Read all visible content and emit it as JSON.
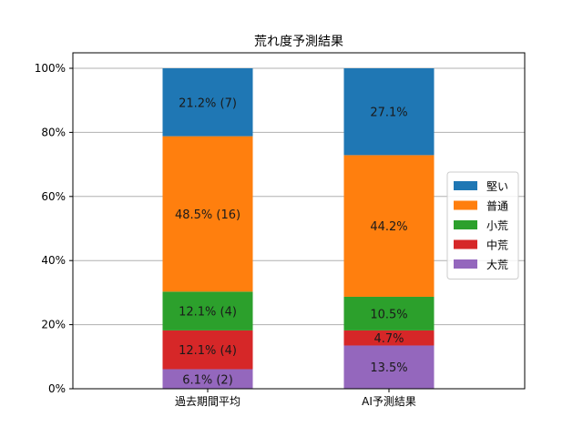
{
  "chart_data": {
    "type": "bar",
    "stacked": true,
    "title": "荒れ度予測結果",
    "xlabel": "",
    "ylabel": "",
    "ylim": [
      0,
      100
    ],
    "yticks": [
      "0%",
      "20%",
      "40%",
      "60%",
      "80%",
      "100%"
    ],
    "grid": "y",
    "legend_position": "right",
    "categories": [
      "過去期間平均",
      "AI予測結果"
    ],
    "series": [
      {
        "name": "大荒",
        "color": "#9467bd",
        "values": [
          6.1,
          13.5
        ],
        "labels": [
          "6.1% (2)",
          "13.5%"
        ]
      },
      {
        "name": "中荒",
        "color": "#d62728",
        "values": [
          12.1,
          4.7
        ],
        "labels": [
          "12.1% (4)",
          "4.7%"
        ]
      },
      {
        "name": "小荒",
        "color": "#2ca02c",
        "values": [
          12.1,
          10.5
        ],
        "labels": [
          "12.1% (4)",
          "10.5%"
        ]
      },
      {
        "name": "普通",
        "color": "#ff7f0e",
        "values": [
          48.5,
          44.2
        ],
        "labels": [
          "48.5% (16)",
          "44.2%"
        ]
      },
      {
        "name": "堅い",
        "color": "#1f77b4",
        "values": [
          21.2,
          27.1
        ],
        "labels": [
          "21.2% (7)",
          "27.1%"
        ]
      }
    ],
    "legend_order": [
      "堅い",
      "普通",
      "小荒",
      "中荒",
      "大荒"
    ]
  }
}
